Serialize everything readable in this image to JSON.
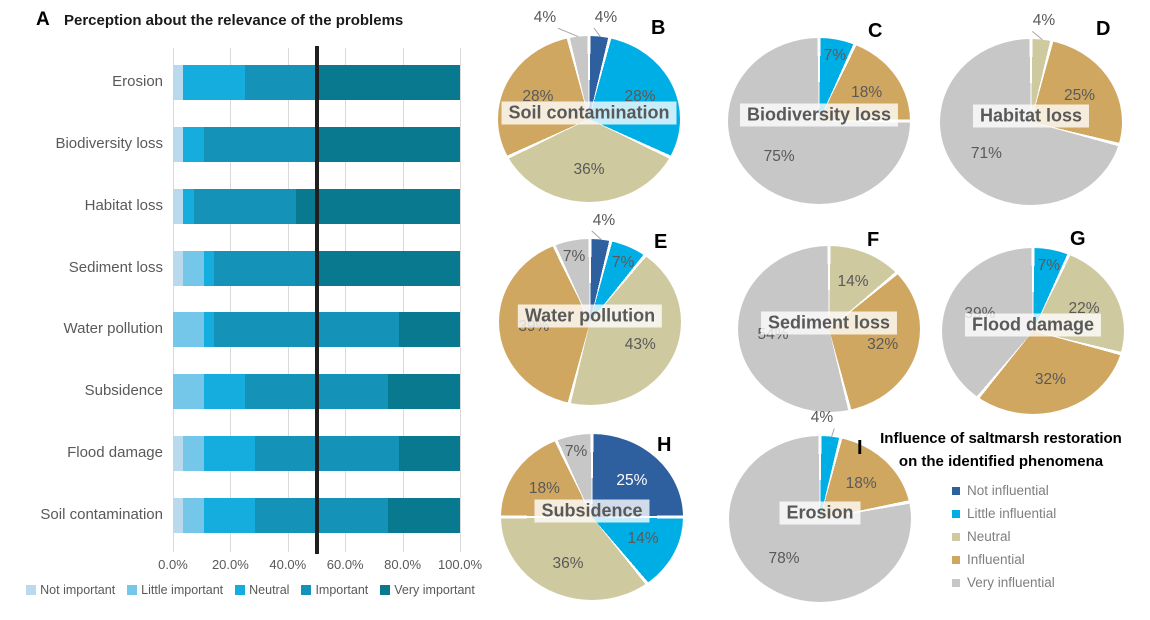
{
  "chart_data": [
    {
      "type": "bar",
      "panel": "A",
      "title": "Perception about the relevance of the problems",
      "orientation": "horizontal-stacked",
      "categories": [
        "Erosion",
        "Biodiversity loss",
        "Habitat loss",
        "Sediment loss",
        "Water pollution",
        "Subsidence",
        "Flood damage",
        "Soil contamination"
      ],
      "series": [
        {
          "name": "Not important",
          "color": "#b9d9ec",
          "values": [
            3.6,
            3.6,
            3.6,
            3.6,
            0,
            0,
            3.6,
            3.6
          ]
        },
        {
          "name": "Little important",
          "color": "#74c7e8",
          "values": [
            0,
            0,
            0,
            7.1,
            10.7,
            10.7,
            7.1,
            7.1
          ]
        },
        {
          "name": "Neutral",
          "color": "#14addd",
          "values": [
            21.4,
            7.1,
            3.6,
            3.6,
            3.6,
            14.3,
            17.9,
            17.9
          ]
        },
        {
          "name": "Important",
          "color": "#1492b8",
          "values": [
            25,
            39.3,
            35.7,
            35.7,
            64.3,
            50,
            50,
            46.4
          ]
        },
        {
          "name": "Very important",
          "color": "#09798f",
          "values": [
            50,
            50,
            57.1,
            50,
            21.4,
            25,
            21.4,
            25
          ]
        }
      ],
      "x_ticks": [
        "0.0%",
        "20.0%",
        "40.0%",
        "60.0%",
        "80.0%",
        "100.0%"
      ],
      "xlim": [
        0,
        100
      ],
      "reference_line_at": 50,
      "grid": true,
      "legend_position": "bottom"
    },
    {
      "type": "pie",
      "panel": "B",
      "title": "Soil contamination",
      "slices": [
        {
          "name": "Not influential",
          "value": 4,
          "outside": true
        },
        {
          "name": "Little influential",
          "value": 28
        },
        {
          "name": "Neutral",
          "value": 36
        },
        {
          "name": "Influential",
          "value": 28
        },
        {
          "name": "Very influential",
          "value": 4,
          "outside": true
        }
      ]
    },
    {
      "type": "pie",
      "panel": "C",
      "title": "Biodiversity loss",
      "slices": [
        {
          "name": "Little influential",
          "value": 7
        },
        {
          "name": "Influential",
          "value": 18
        },
        {
          "name": "Very influential",
          "value": 75
        }
      ]
    },
    {
      "type": "pie",
      "panel": "D",
      "title": "Habitat loss",
      "slices": [
        {
          "name": "Neutral",
          "value": 4,
          "outside": true
        },
        {
          "name": "Influential",
          "value": 25
        },
        {
          "name": "Very influential",
          "value": 71
        }
      ]
    },
    {
      "type": "pie",
      "panel": "E",
      "title": "Water pollution",
      "slices": [
        {
          "name": "Not influential",
          "value": 4,
          "outside": true
        },
        {
          "name": "Little influential",
          "value": 7
        },
        {
          "name": "Neutral",
          "value": 43
        },
        {
          "name": "Influential",
          "value": 39
        },
        {
          "name": "Very influential",
          "value": 7
        }
      ]
    },
    {
      "type": "pie",
      "panel": "F",
      "title": "Sediment loss",
      "slices": [
        {
          "name": "Neutral",
          "value": 14
        },
        {
          "name": "Influential",
          "value": 32
        },
        {
          "name": "Very influential",
          "value": 54
        }
      ]
    },
    {
      "type": "pie",
      "panel": "G",
      "title": "Flood damage",
      "slices": [
        {
          "name": "Little influential",
          "value": 7
        },
        {
          "name": "Neutral",
          "value": 22
        },
        {
          "name": "Influential",
          "value": 32
        },
        {
          "name": "Very influential",
          "value": 39
        }
      ]
    },
    {
      "type": "pie",
      "panel": "H",
      "title": "Subsidence",
      "slices": [
        {
          "name": "Not influential",
          "value": 25,
          "label_white": true
        },
        {
          "name": "Little influential",
          "value": 14
        },
        {
          "name": "Neutral",
          "value": 36
        },
        {
          "name": "Influential",
          "value": 18
        },
        {
          "name": "Very influential",
          "value": 7
        }
      ]
    },
    {
      "type": "pie",
      "panel": "I",
      "title": "Erosion",
      "slices": [
        {
          "name": "Little influential",
          "value": 4,
          "outside": true
        },
        {
          "name": "Influential",
          "value": 18
        },
        {
          "name": "Very influential",
          "value": 78
        }
      ]
    }
  ],
  "influence_legend": {
    "title_lines": [
      "Influence of saltmarsh restoration",
      "on the identified phenomena"
    ],
    "items": [
      {
        "label": "Not influential",
        "color": "#2e5f9e"
      },
      {
        "label": "Little influential",
        "color": "#00aee6"
      },
      {
        "label": "Neutral",
        "color": "#cfc9a0"
      },
      {
        "label": "Influential",
        "color": "#d0a761"
      },
      {
        "label": "Very influential",
        "color": "#c7c7c7"
      }
    ]
  }
}
